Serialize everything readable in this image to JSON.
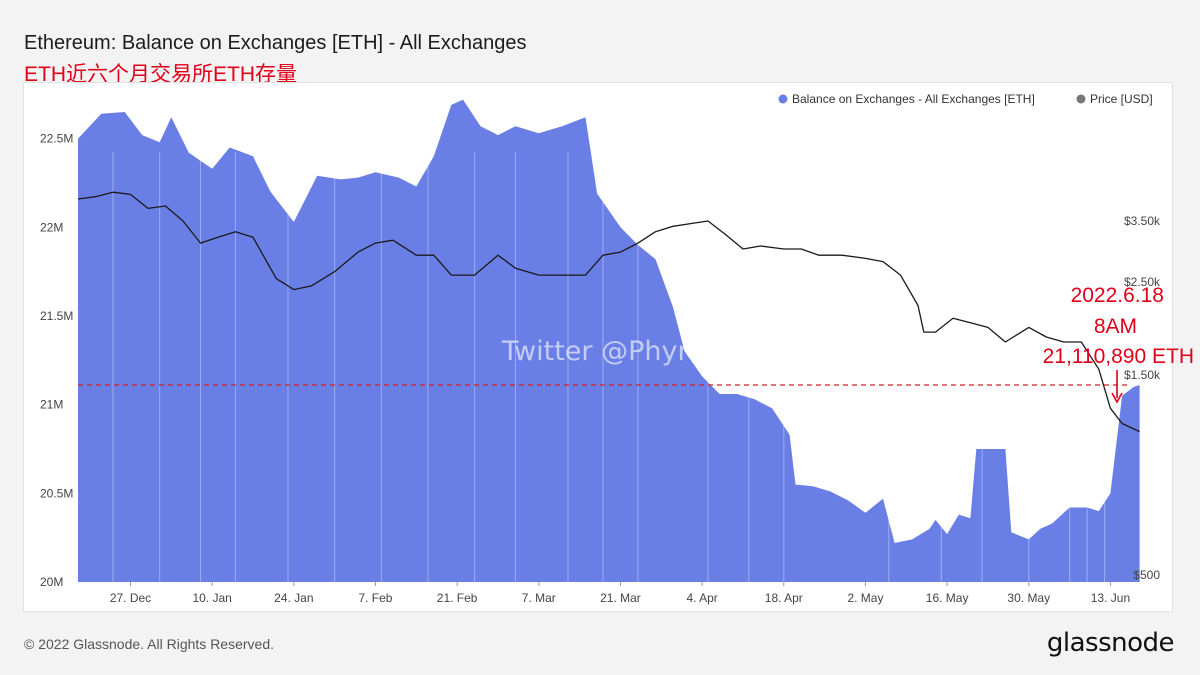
{
  "title": "Ethereum: Balance on Exchanges [ETH] - All Exchanges",
  "subtitle": "ETH近六个月交易所ETH存量",
  "footer": "© 2022 Glassnode. All Rights Reserved.",
  "brand": "glassnode",
  "watermark": "Twitter @Phyrex_Ni",
  "colors": {
    "balance": "#6a7fe6",
    "price": "#1a1a1a",
    "legend_price": "#777777",
    "reference_line": "#d32020",
    "annotation": "#e0001a"
  },
  "chart_data": {
    "type": "area",
    "x_ticks": [
      "27. Dec",
      "10. Jan",
      "24. Jan",
      "7. Feb",
      "21. Feb",
      "7. Mar",
      "21. Mar",
      "4. Apr",
      "18. Apr",
      "2. May",
      "16. May",
      "30. May",
      "13. Jun"
    ],
    "y_left": {
      "ticks": [
        "20M",
        "20.5M",
        "21M",
        "21.5M",
        "22M",
        "22.5M"
      ],
      "range": [
        20000000,
        22650000
      ]
    },
    "y_right": {
      "ticks": [
        "$500",
        "$1.50k",
        "$2.50k",
        "$3.50k"
      ],
      "range": [
        500,
        4450
      ],
      "scale": "log"
    },
    "legend": {
      "placement": "top-right",
      "entries": [
        "Balance on Exchanges - All Exchanges [ETH]",
        "Price [USD]"
      ]
    },
    "series": [
      {
        "name": "Balance on Exchanges - All Exchanges [ETH]",
        "axis": "left",
        "points": [
          [
            "2021-12-18",
            22500000
          ],
          [
            "2021-12-22",
            22640000
          ],
          [
            "2021-12-26",
            22650000
          ],
          [
            "2021-12-29",
            22520000
          ],
          [
            "2022-01-01",
            22480000
          ],
          [
            "2022-01-03",
            22620000
          ],
          [
            "2022-01-06",
            22420000
          ],
          [
            "2022-01-10",
            22330000
          ],
          [
            "2022-01-13",
            22450000
          ],
          [
            "2022-01-17",
            22400000
          ],
          [
            "2022-01-20",
            22200000
          ],
          [
            "2022-01-24",
            22030000
          ],
          [
            "2022-01-28",
            22290000
          ],
          [
            "2022-02-01",
            22270000
          ],
          [
            "2022-02-04",
            22280000
          ],
          [
            "2022-02-07",
            22310000
          ],
          [
            "2022-02-11",
            22280000
          ],
          [
            "2022-02-14",
            22230000
          ],
          [
            "2022-02-17",
            22400000
          ],
          [
            "2022-02-20",
            22690000
          ],
          [
            "2022-02-22",
            22720000
          ],
          [
            "2022-02-25",
            22570000
          ],
          [
            "2022-02-28",
            22520000
          ],
          [
            "2022-03-03",
            22570000
          ],
          [
            "2022-03-07",
            22530000
          ],
          [
            "2022-03-11",
            22570000
          ],
          [
            "2022-03-15",
            22620000
          ],
          [
            "2022-03-17",
            22190000
          ],
          [
            "2022-03-21",
            22000000
          ],
          [
            "2022-03-24",
            21900000
          ],
          [
            "2022-03-27",
            21820000
          ],
          [
            "2022-03-30",
            21550000
          ],
          [
            "2022-04-01",
            21300000
          ],
          [
            "2022-04-04",
            21160000
          ],
          [
            "2022-04-07",
            21060000
          ],
          [
            "2022-04-10",
            21060000
          ],
          [
            "2022-04-13",
            21030000
          ],
          [
            "2022-04-16",
            20980000
          ],
          [
            "2022-04-19",
            20830000
          ],
          [
            "2022-04-20",
            20550000
          ],
          [
            "2022-04-23",
            20540000
          ],
          [
            "2022-04-26",
            20510000
          ],
          [
            "2022-04-29",
            20460000
          ],
          [
            "2022-05-02",
            20390000
          ],
          [
            "2022-05-05",
            20470000
          ],
          [
            "2022-05-07",
            20220000
          ],
          [
            "2022-05-10",
            20240000
          ],
          [
            "2022-05-13",
            20300000
          ],
          [
            "2022-05-14",
            20350000
          ],
          [
            "2022-05-16",
            20270000
          ],
          [
            "2022-05-18",
            20380000
          ],
          [
            "2022-05-20",
            20360000
          ],
          [
            "2022-05-21",
            20750000
          ],
          [
            "2022-05-24",
            20750000
          ],
          [
            "2022-05-26",
            20750000
          ],
          [
            "2022-05-27",
            20280000
          ],
          [
            "2022-05-30",
            20240000
          ],
          [
            "2022-06-01",
            20300000
          ],
          [
            "2022-06-03",
            20330000
          ],
          [
            "2022-06-06",
            20420000
          ],
          [
            "2022-06-09",
            20420000
          ],
          [
            "2022-06-11",
            20400000
          ],
          [
            "2022-06-13",
            20500000
          ],
          [
            "2022-06-15",
            21050000
          ],
          [
            "2022-06-17",
            21100000
          ],
          [
            "2022-06-18",
            21110890
          ]
        ]
      },
      {
        "name": "Price [USD]",
        "axis": "right",
        "points": [
          [
            "2021-12-18",
            3950
          ],
          [
            "2021-12-21",
            4000
          ],
          [
            "2021-12-24",
            4100
          ],
          [
            "2021-12-27",
            4050
          ],
          [
            "2021-12-30",
            3750
          ],
          [
            "2022-01-02",
            3800
          ],
          [
            "2022-01-05",
            3500
          ],
          [
            "2022-01-08",
            3100
          ],
          [
            "2022-01-11",
            3200
          ],
          [
            "2022-01-14",
            3300
          ],
          [
            "2022-01-17",
            3200
          ],
          [
            "2022-01-21",
            2550
          ],
          [
            "2022-01-24",
            2400
          ],
          [
            "2022-01-27",
            2450
          ],
          [
            "2022-01-31",
            2650
          ],
          [
            "2022-02-04",
            2950
          ],
          [
            "2022-02-07",
            3100
          ],
          [
            "2022-02-10",
            3150
          ],
          [
            "2022-02-14",
            2900
          ],
          [
            "2022-02-17",
            2900
          ],
          [
            "2022-02-20",
            2600
          ],
          [
            "2022-02-24",
            2600
          ],
          [
            "2022-02-28",
            2900
          ],
          [
            "2022-03-03",
            2700
          ],
          [
            "2022-03-07",
            2600
          ],
          [
            "2022-03-11",
            2600
          ],
          [
            "2022-03-15",
            2600
          ],
          [
            "2022-03-18",
            2900
          ],
          [
            "2022-03-21",
            2950
          ],
          [
            "2022-03-24",
            3100
          ],
          [
            "2022-03-27",
            3300
          ],
          [
            "2022-03-30",
            3400
          ],
          [
            "2022-04-02",
            3450
          ],
          [
            "2022-04-05",
            3500
          ],
          [
            "2022-04-08",
            3250
          ],
          [
            "2022-04-11",
            3000
          ],
          [
            "2022-04-14",
            3050
          ],
          [
            "2022-04-18",
            3000
          ],
          [
            "2022-04-21",
            3000
          ],
          [
            "2022-04-24",
            2900
          ],
          [
            "2022-04-28",
            2900
          ],
          [
            "2022-05-02",
            2850
          ],
          [
            "2022-05-05",
            2800
          ],
          [
            "2022-05-08",
            2600
          ],
          [
            "2022-05-11",
            2200
          ],
          [
            "2022-05-12",
            1900
          ],
          [
            "2022-05-14",
            1900
          ],
          [
            "2022-05-17",
            2050
          ],
          [
            "2022-05-20",
            2000
          ],
          [
            "2022-05-23",
            1950
          ],
          [
            "2022-05-26",
            1800
          ],
          [
            "2022-05-30",
            1950
          ],
          [
            "2022-06-02",
            1850
          ],
          [
            "2022-06-05",
            1800
          ],
          [
            "2022-06-08",
            1800
          ],
          [
            "2022-06-11",
            1550
          ],
          [
            "2022-06-13",
            1250
          ],
          [
            "2022-06-15",
            1150
          ],
          [
            "2022-06-18",
            1100
          ]
        ]
      }
    ],
    "reference_line": {
      "value": 21110890,
      "axis": "left",
      "style": "dashed"
    },
    "annotation": [
      "2022.6.18",
      "8AM",
      "21,110,890 ETH"
    ]
  }
}
